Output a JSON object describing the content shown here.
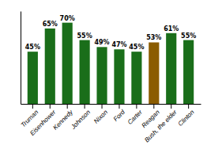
{
  "chart_data": {
    "type": "bar",
    "categories": [
      "Truman",
      "Eisenhower",
      "Kennedy",
      "Johnson",
      "Nixon",
      "Ford",
      "Carter",
      "Reagan",
      "Bush, the elder",
      "Clinton"
    ],
    "values": [
      45,
      65,
      70,
      55,
      49,
      47,
      45,
      53,
      61,
      55
    ],
    "value_labels": [
      "45%",
      "65%",
      "70%",
      "55%",
      "49%",
      "47%",
      "45%",
      "53%",
      "61%",
      "55%"
    ],
    "colors": [
      "#1a6e1a",
      "#1a6e1a",
      "#1a6e1a",
      "#1a6e1a",
      "#1a6e1a",
      "#1a6e1a",
      "#1a6e1a",
      "#8B5C00",
      "#1a6e1a",
      "#1a6e1a"
    ],
    "ylim": [
      0,
      80
    ],
    "yticks": [],
    "data_labels": true,
    "tick_labels": "x",
    "grid": false
  }
}
